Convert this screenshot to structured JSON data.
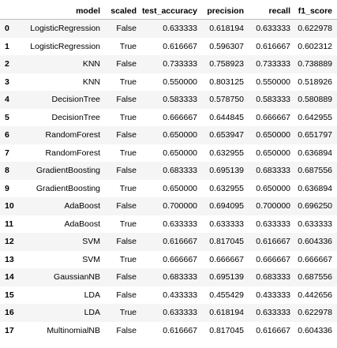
{
  "table": {
    "columns": [
      "",
      "model",
      "scaled",
      "test_accuracy",
      "precision",
      "recall",
      "f1_score"
    ],
    "rows": [
      [
        "0",
        "LogisticRegression",
        "False",
        "0.633333",
        "0.618194",
        "0.633333",
        "0.622978"
      ],
      [
        "1",
        "LogisticRegression",
        "True",
        "0.616667",
        "0.596307",
        "0.616667",
        "0.602312"
      ],
      [
        "2",
        "KNN",
        "False",
        "0.733333",
        "0.758923",
        "0.733333",
        "0.738889"
      ],
      [
        "3",
        "KNN",
        "True",
        "0.550000",
        "0.803125",
        "0.550000",
        "0.518926"
      ],
      [
        "4",
        "DecisionTree",
        "False",
        "0.583333",
        "0.578750",
        "0.583333",
        "0.580889"
      ],
      [
        "5",
        "DecisionTree",
        "True",
        "0.666667",
        "0.644845",
        "0.666667",
        "0.642955"
      ],
      [
        "6",
        "RandomForest",
        "False",
        "0.650000",
        "0.653947",
        "0.650000",
        "0.651797"
      ],
      [
        "7",
        "RandomForest",
        "True",
        "0.650000",
        "0.632955",
        "0.650000",
        "0.636894"
      ],
      [
        "8",
        "GradientBoosting",
        "False",
        "0.683333",
        "0.695139",
        "0.683333",
        "0.687556"
      ],
      [
        "9",
        "GradientBoosting",
        "True",
        "0.650000",
        "0.632955",
        "0.650000",
        "0.636894"
      ],
      [
        "10",
        "AdaBoost",
        "False",
        "0.700000",
        "0.694095",
        "0.700000",
        "0.696250"
      ],
      [
        "11",
        "AdaBoost",
        "True",
        "0.633333",
        "0.633333",
        "0.633333",
        "0.633333"
      ],
      [
        "12",
        "SVM",
        "False",
        "0.616667",
        "0.817045",
        "0.616667",
        "0.604336"
      ],
      [
        "13",
        "SVM",
        "True",
        "0.666667",
        "0.666667",
        "0.666667",
        "0.666667"
      ],
      [
        "14",
        "GaussianNB",
        "False",
        "0.683333",
        "0.695139",
        "0.683333",
        "0.687556"
      ],
      [
        "15",
        "LDA",
        "False",
        "0.433333",
        "0.455429",
        "0.433333",
        "0.442656"
      ],
      [
        "16",
        "LDA",
        "True",
        "0.633333",
        "0.618194",
        "0.633333",
        "0.622978"
      ],
      [
        "17",
        "MultinomialNB",
        "False",
        "0.616667",
        "0.817045",
        "0.616667",
        "0.604336"
      ]
    ]
  }
}
